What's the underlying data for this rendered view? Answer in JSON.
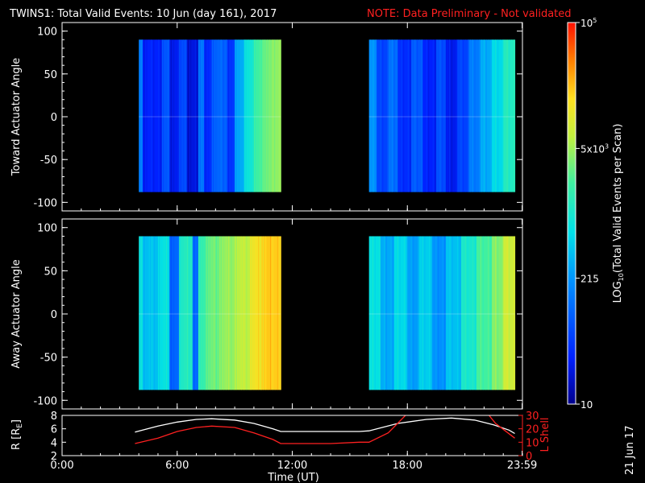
{
  "header": {
    "title": "TWINS1: Total Valid Events: 10 Jun (day 161), 2017",
    "note": "NOTE: Data Preliminary - Not validated"
  },
  "footer": {
    "date_stamp": "21 Jun 17"
  },
  "colors": {
    "background": "#000000",
    "axes": "#ffffff",
    "note": "#ff2020",
    "lshell": "#ff2020",
    "r_line": "#ffffff"
  },
  "chart_data": [
    {
      "type": "heatmap",
      "panel": "toward",
      "ylabel": "Toward Actuator Angle",
      "ylim": [
        -110,
        110
      ],
      "yticks": [
        100,
        50,
        0,
        -50,
        -100
      ],
      "xlim": [
        0,
        24
      ],
      "x_unit": "hours UT",
      "data_blocks": [
        {
          "x_start": 4.0,
          "x_end": 11.4,
          "y_range": [
            -88,
            90
          ],
          "bands": [
            {
              "x0": 4.0,
              "x1": 4.2,
              "level": 0.3
            },
            {
              "x0": 4.2,
              "x1": 5.2,
              "level": 0.12
            },
            {
              "x0": 5.2,
              "x1": 5.6,
              "level": 0.22
            },
            {
              "x0": 5.6,
              "x1": 6.1,
              "level": 0.1
            },
            {
              "x0": 6.1,
              "x1": 6.5,
              "level": 0.2
            },
            {
              "x0": 6.5,
              "x1": 7.1,
              "level": 0.08
            },
            {
              "x0": 7.1,
              "x1": 7.4,
              "level": 0.28
            },
            {
              "x0": 7.4,
              "x1": 7.8,
              "level": 0.14
            },
            {
              "x0": 7.8,
              "x1": 8.6,
              "level": 0.24
            },
            {
              "x0": 8.6,
              "x1": 9.0,
              "level": 0.16
            },
            {
              "x0": 9.0,
              "x1": 9.5,
              "level": 0.36
            },
            {
              "x0": 9.5,
              "x1": 10.0,
              "level": 0.48
            },
            {
              "x0": 10.0,
              "x1": 10.5,
              "level": 0.58
            },
            {
              "x0": 10.5,
              "x1": 11.0,
              "level": 0.63
            },
            {
              "x0": 11.0,
              "x1": 11.4,
              "level": 0.66
            }
          ]
        },
        {
          "x_start": 16.0,
          "x_end": 23.6,
          "y_range": [
            -88,
            90
          ],
          "bands": [
            {
              "x0": 16.0,
              "x1": 16.4,
              "level": 0.32
            },
            {
              "x0": 16.4,
              "x1": 17.0,
              "level": 0.18
            },
            {
              "x0": 17.0,
              "x1": 17.5,
              "level": 0.26
            },
            {
              "x0": 17.5,
              "x1": 18.2,
              "level": 0.14
            },
            {
              "x0": 18.2,
              "x1": 18.8,
              "level": 0.22
            },
            {
              "x0": 18.8,
              "x1": 19.5,
              "level": 0.12
            },
            {
              "x0": 19.5,
              "x1": 20.0,
              "level": 0.2
            },
            {
              "x0": 20.0,
              "x1": 20.6,
              "level": 0.1
            },
            {
              "x0": 20.6,
              "x1": 21.2,
              "level": 0.18
            },
            {
              "x0": 21.2,
              "x1": 21.8,
              "level": 0.28
            },
            {
              "x0": 21.8,
              "x1": 22.4,
              "level": 0.36
            },
            {
              "x0": 22.4,
              "x1": 23.0,
              "level": 0.44
            },
            {
              "x0": 23.0,
              "x1": 23.6,
              "level": 0.52
            }
          ]
        }
      ]
    },
    {
      "type": "heatmap",
      "panel": "away",
      "ylabel": "Away Actuator Angle",
      "ylim": [
        -110,
        110
      ],
      "yticks": [
        100,
        50,
        0,
        -50,
        -100
      ],
      "xlim": [
        0,
        24
      ],
      "x_unit": "hours UT",
      "data_blocks": [
        {
          "x_start": 4.0,
          "x_end": 11.4,
          "y_range": [
            -88,
            90
          ],
          "bands": [
            {
              "x0": 4.0,
              "x1": 4.2,
              "level": 0.48
            },
            {
              "x0": 4.2,
              "x1": 5.0,
              "level": 0.4
            },
            {
              "x0": 5.0,
              "x1": 5.6,
              "level": 0.46
            },
            {
              "x0": 5.6,
              "x1": 6.1,
              "level": 0.24
            },
            {
              "x0": 6.1,
              "x1": 6.8,
              "level": 0.52
            },
            {
              "x0": 6.8,
              "x1": 7.1,
              "level": 0.26
            },
            {
              "x0": 7.1,
              "x1": 7.5,
              "level": 0.56
            },
            {
              "x0": 7.5,
              "x1": 8.2,
              "level": 0.62
            },
            {
              "x0": 8.2,
              "x1": 9.0,
              "level": 0.66
            },
            {
              "x0": 9.0,
              "x1": 9.8,
              "level": 0.7
            },
            {
              "x0": 9.8,
              "x1": 10.4,
              "level": 0.78
            },
            {
              "x0": 10.4,
              "x1": 11.4,
              "level": 0.82
            }
          ]
        },
        {
          "x_start": 16.0,
          "x_end": 23.6,
          "y_range": [
            -88,
            90
          ],
          "bands": [
            {
              "x0": 16.0,
              "x1": 16.6,
              "level": 0.46
            },
            {
              "x0": 16.6,
              "x1": 17.3,
              "level": 0.36
            },
            {
              "x0": 17.3,
              "x1": 18.0,
              "level": 0.44
            },
            {
              "x0": 18.0,
              "x1": 18.6,
              "level": 0.34
            },
            {
              "x0": 18.6,
              "x1": 19.3,
              "level": 0.42
            },
            {
              "x0": 19.3,
              "x1": 20.0,
              "level": 0.32
            },
            {
              "x0": 20.0,
              "x1": 20.8,
              "level": 0.4
            },
            {
              "x0": 20.8,
              "x1": 21.6,
              "level": 0.5
            },
            {
              "x0": 21.6,
              "x1": 22.4,
              "level": 0.58
            },
            {
              "x0": 22.4,
              "x1": 23.0,
              "level": 0.64
            },
            {
              "x0": 23.0,
              "x1": 23.6,
              "level": 0.72
            }
          ]
        }
      ]
    },
    {
      "type": "line",
      "panel": "orbit",
      "ylabel": "R [R",
      "ylabel_sub": "E",
      "ylabel_end": "]",
      "ylim": [
        2,
        8
      ],
      "yticks": [
        8,
        6,
        4,
        2
      ],
      "right_ylabel": "L Shell",
      "right_ylim": [
        0,
        30
      ],
      "right_yticks": [
        30,
        20,
        10,
        0
      ],
      "xlabel": "Time (UT)",
      "xlim": [
        0,
        24
      ],
      "xticks": [
        0,
        6,
        12,
        18,
        23.983
      ],
      "xtick_labels": [
        "0:00",
        "6:00",
        "12:00",
        "18:00",
        "23:59"
      ],
      "series": [
        {
          "color": "#ffffff",
          "axis": "left",
          "x": [
            3.8,
            5.0,
            6.0,
            7.0,
            7.8,
            9.0,
            10.0,
            11.0,
            11.4,
            12.5,
            14.0,
            15.5,
            16.0,
            17.5,
            19.0,
            20.3,
            21.5,
            22.5,
            23.3,
            23.6
          ],
          "y": [
            5.5,
            6.4,
            7.0,
            7.4,
            7.5,
            7.3,
            6.8,
            6.0,
            5.6,
            5.6,
            5.6,
            5.6,
            5.7,
            6.8,
            7.4,
            7.6,
            7.3,
            6.6,
            5.8,
            5.3
          ]
        },
        {
          "color": "#ff2020",
          "axis": "right",
          "x": [
            3.8,
            5.0,
            6.0,
            7.0,
            7.8,
            9.0,
            10.0,
            11.0,
            11.4,
            12.5,
            14.0,
            15.5,
            16.0,
            17.0,
            17.9,
            18.1,
            22.2,
            22.6,
            23.6
          ],
          "y": [
            9,
            13,
            18,
            21,
            22,
            21,
            17,
            12,
            9,
            9,
            9,
            10,
            10,
            17,
            30,
            31,
            31,
            24,
            13
          ]
        }
      ]
    }
  ],
  "colorbar": {
    "label_prefix": "LOG",
    "label_sub": "10",
    "label_suffix": "(Total Valid Events per Scan)",
    "tick_labels": [
      {
        "base": "10",
        "exp": "5",
        "level": 1.0
      },
      {
        "base": "5x10",
        "exp": "3",
        "level": 0.67
      },
      {
        "base": "215",
        "exp": "",
        "level": 0.33
      },
      {
        "base": "10",
        "exp": "",
        "level": 0.0
      }
    ]
  }
}
